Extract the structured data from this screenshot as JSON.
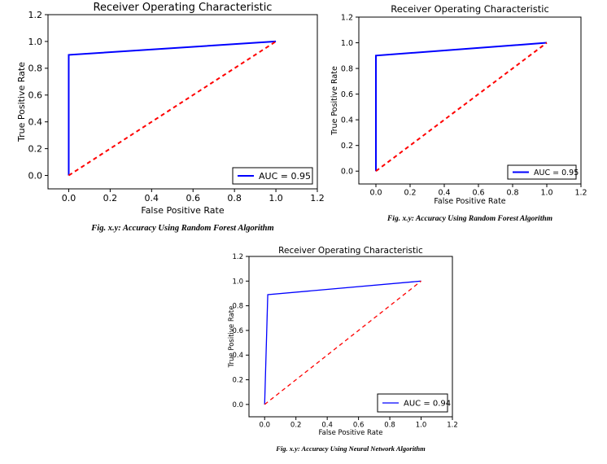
{
  "colors": {
    "roc": "#0000ff",
    "chance": "#ff0000"
  },
  "chart_data": [
    {
      "type": "line",
      "title": "Receiver Operating Characteristic",
      "xlabel": "False Positive Rate",
      "ylabel": "True Positive Rate",
      "xlim": [
        -0.1,
        1.2
      ],
      "ylim": [
        -0.1,
        1.2
      ],
      "xticks": [
        "0.0",
        "0.2",
        "0.4",
        "0.6",
        "0.8",
        "1.0",
        "1.2"
      ],
      "yticks": [
        "0.0",
        "0.2",
        "0.4",
        "0.6",
        "0.8",
        "1.0",
        "1.2"
      ],
      "grid": false,
      "legend_position": "lower-right",
      "series": [
        {
          "name": "AUC = 0.95",
          "style": "solid",
          "color": "#0000ff",
          "x": [
            0.0,
            0.0,
            1.0
          ],
          "y": [
            0.0,
            0.9,
            1.0
          ]
        },
        {
          "style": "dashed",
          "color": "#ff0000",
          "x": [
            0.0,
            1.0
          ],
          "y": [
            0.0,
            1.0
          ]
        }
      ],
      "caption": "Fig. x.y: Accuracy Using Random Forest Algorithm"
    },
    {
      "type": "line",
      "title": "Receiver Operating Characteristic",
      "xlabel": "False Positive Rate",
      "ylabel": "True Positive Rate",
      "xlim": [
        -0.1,
        1.2
      ],
      "ylim": [
        -0.1,
        1.2
      ],
      "xticks": [
        "0.0",
        "0.2",
        "0.4",
        "0.6",
        "0.8",
        "1.0",
        "1.2"
      ],
      "yticks": [
        "0.0",
        "0.2",
        "0.4",
        "0.6",
        "0.8",
        "1.0",
        "1.2"
      ],
      "grid": false,
      "legend_position": "lower-right",
      "series": [
        {
          "name": "AUC = 0.95",
          "style": "solid",
          "color": "#0000ff",
          "x": [
            0.0,
            0.0,
            1.0
          ],
          "y": [
            0.0,
            0.9,
            1.0
          ]
        },
        {
          "style": "dashed",
          "color": "#ff0000",
          "x": [
            0.0,
            1.0
          ],
          "y": [
            0.0,
            1.0
          ]
        }
      ],
      "caption": "Fig. x.y: Accuracy Using Random Forest Algorithm"
    },
    {
      "type": "line",
      "title": "Receiver Operating Characteristic",
      "xlabel": "False Positive Rate",
      "ylabel": "True Positive Rate",
      "xlim": [
        -0.1,
        1.2
      ],
      "ylim": [
        -0.1,
        1.2
      ],
      "xticks": [
        "0.0",
        "0.2",
        "0.4",
        "0.6",
        "0.8",
        "1.0",
        "1.2"
      ],
      "yticks": [
        "0.0",
        "0.2",
        "0.4",
        "0.6",
        "0.8",
        "1.0",
        "1.2"
      ],
      "grid": false,
      "legend_position": "lower-right",
      "series": [
        {
          "name": "AUC = 0.94",
          "style": "solid",
          "color": "#0000ff",
          "x": [
            0.0,
            0.02,
            1.0
          ],
          "y": [
            0.0,
            0.89,
            1.0
          ]
        },
        {
          "style": "dashed",
          "color": "#ff0000",
          "x": [
            0.0,
            1.0
          ],
          "y": [
            0.0,
            1.0
          ]
        }
      ],
      "caption": "Fig. x.y: Accuracy Using Neural Network Algorithm"
    }
  ]
}
